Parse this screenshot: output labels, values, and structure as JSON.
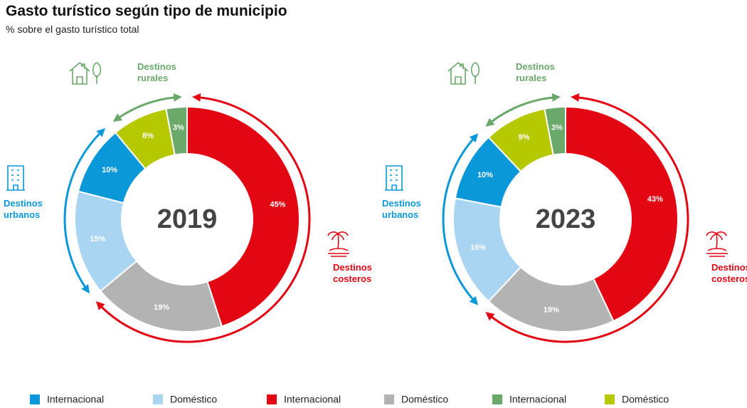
{
  "header": {
    "title": "Gasto turístico según tipo de municipio",
    "subtitle": "% sobre el gasto turístico total"
  },
  "chart_data": [
    {
      "type": "pie",
      "title": "2019",
      "categories": [
        "Internacional",
        "Doméstico",
        "Doméstico",
        "Internacional",
        "Doméstico",
        "Internacional"
      ],
      "values": [
        45,
        19,
        15,
        10,
        8,
        3
      ],
      "value_labels": [
        "45%",
        "19%",
        "15%",
        "10%",
        "8%",
        "3%"
      ],
      "colors": [
        "#e30613",
        "#b3b3b3",
        "#a9d5f3",
        "#0b98d9",
        "#b6c800",
        "#6aa96a"
      ],
      "annotations": [
        {
          "text": "Destinos costeros",
          "color": "#e30613"
        },
        {
          "text": "Destinos urbanos",
          "color": "#0b98d9"
        },
        {
          "text": "Destinos rurales",
          "color": "#6aa96a"
        }
      ]
    },
    {
      "type": "pie",
      "title": "2023",
      "categories": [
        "Internacional",
        "Doméstico",
        "Doméstico",
        "Internacional",
        "Doméstico",
        "Internacional"
      ],
      "values": [
        43,
        19,
        16,
        10,
        9,
        3
      ],
      "value_labels": [
        "43%",
        "19%",
        "16%",
        "10%",
        "9%",
        "3%"
      ],
      "colors": [
        "#e30613",
        "#b3b3b3",
        "#a9d5f3",
        "#0b98d9",
        "#b6c800",
        "#6aa96a"
      ],
      "annotations": [
        {
          "text": "Destinos costeros",
          "color": "#e30613"
        },
        {
          "text": "Destinos urbanos",
          "color": "#0b98d9"
        },
        {
          "text": "Destinos rurales",
          "color": "#6aa96a"
        }
      ]
    }
  ]
}
